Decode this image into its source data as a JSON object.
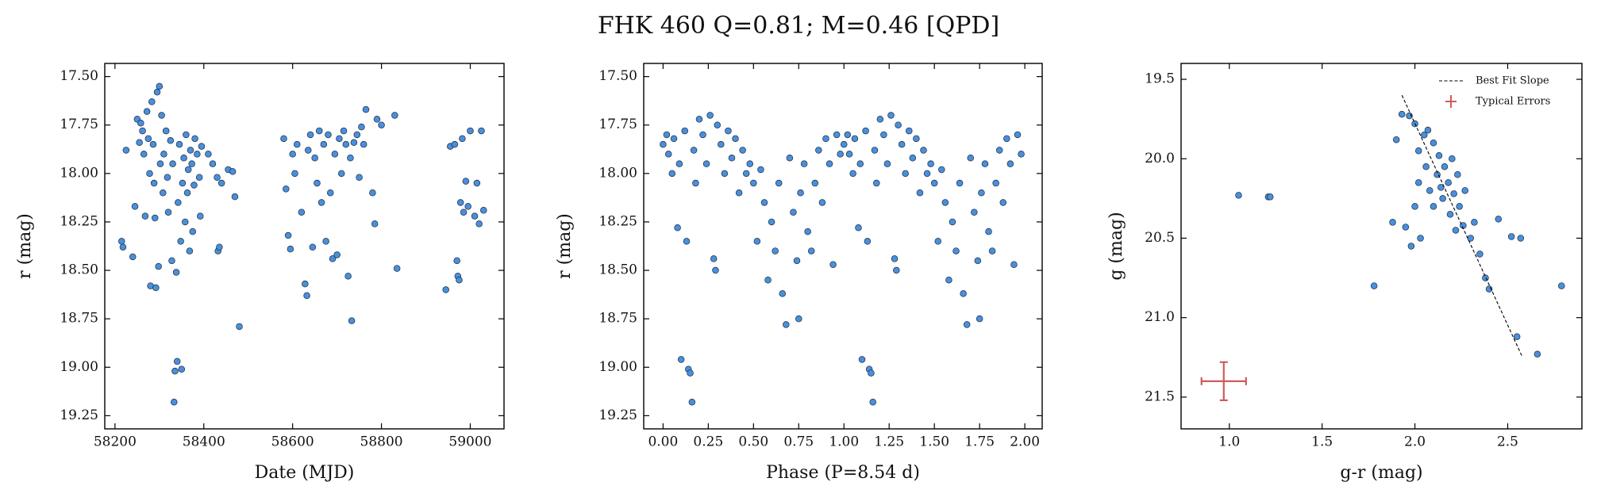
{
  "title": "FHK 460  Q=0.81; M=0.46 [QPD]",
  "chart_data": [
    {
      "type": "scatter",
      "xlabel": "Date (MJD)",
      "ylabel": "r (mag)",
      "xlim": [
        58177,
        59076
      ],
      "ylim": [
        19.318,
        17.432
      ],
      "xticks": [
        58200,
        58400,
        58600,
        58800,
        59000
      ],
      "yticks": [
        {
          "value": 17.5,
          "label": "17.50"
        },
        {
          "value": 17.75,
          "label": "17.75"
        },
        {
          "value": 18.0,
          "label": "18.00"
        },
        {
          "value": 18.25,
          "label": "18.25"
        },
        {
          "value": 18.5,
          "label": "18.50"
        },
        {
          "value": 18.75,
          "label": "18.75"
        },
        {
          "value": 19.0,
          "label": "19.00"
        },
        {
          "value": 19.25,
          "label": "19.25"
        }
      ],
      "series": [
        {
          "color": "#4a8fdc",
          "x": [
            58215,
            58218,
            58225,
            58240,
            58245,
            58250,
            58255,
            58258,
            58262,
            58265,
            58268,
            58272,
            58275,
            58278,
            58280,
            58283,
            58286,
            58288,
            58290,
            58292,
            58295,
            58298,
            58300,
            58302,
            58305,
            58308,
            58310,
            58315,
            58318,
            58320,
            58325,
            58328,
            58330,
            58333,
            58335,
            58338,
            58340,
            58342,
            58345,
            58348,
            58350,
            58352,
            58355,
            58358,
            58360,
            58363,
            58365,
            58368,
            58370,
            58373,
            58375,
            58378,
            58380,
            58385,
            58390,
            58392,
            58395,
            58410,
            58420,
            58430,
            58432,
            58435,
            58440,
            58455,
            58465,
            58470,
            58480,
            58580,
            58585,
            58590,
            58595,
            58600,
            58605,
            58610,
            58620,
            58628,
            58632,
            58635,
            58640,
            58645,
            58650,
            58655,
            58660,
            58665,
            58670,
            58675,
            58680,
            58685,
            58690,
            58695,
            58700,
            58705,
            58710,
            58715,
            58720,
            58725,
            58730,
            58733,
            58738,
            58745,
            58750,
            58755,
            58760,
            58765,
            58780,
            58785,
            58790,
            58800,
            58830,
            58835,
            58945,
            58955,
            58965,
            58970,
            58972,
            58975,
            58978,
            58982,
            58985,
            58990,
            58995,
            59000,
            59010,
            59015,
            59020,
            59025,
            59030
          ],
          "y": [
            18.35,
            18.38,
            17.88,
            18.43,
            18.17,
            17.72,
            17.84,
            17.74,
            17.78,
            17.9,
            18.22,
            17.68,
            17.82,
            18.0,
            18.58,
            17.63,
            17.85,
            18.05,
            18.23,
            18.59,
            17.58,
            18.48,
            17.55,
            17.95,
            17.7,
            18.1,
            17.9,
            17.78,
            18.02,
            18.2,
            17.83,
            18.45,
            17.95,
            19.18,
            19.02,
            18.51,
            18.97,
            18.15,
            17.85,
            18.35,
            19.01,
            18.05,
            17.92,
            18.25,
            17.8,
            18.1,
            17.98,
            18.4,
            17.88,
            17.95,
            18.3,
            18.06,
            17.82,
            17.9,
            18.02,
            18.22,
            17.86,
            17.9,
            17.95,
            18.02,
            18.4,
            18.38,
            18.05,
            17.98,
            17.99,
            18.12,
            18.79,
            17.82,
            18.08,
            18.32,
            18.39,
            17.9,
            18.0,
            17.85,
            18.2,
            18.57,
            18.63,
            17.88,
            17.8,
            18.38,
            17.92,
            18.05,
            17.78,
            18.15,
            17.85,
            18.35,
            17.8,
            18.1,
            18.44,
            17.9,
            18.42,
            17.82,
            18.0,
            17.78,
            17.85,
            18.53,
            17.92,
            18.76,
            17.84,
            17.8,
            18.02,
            17.76,
            17.85,
            17.67,
            18.1,
            18.26,
            17.72,
            17.75,
            17.7,
            18.49,
            18.6,
            17.86,
            17.85,
            18.45,
            18.53,
            18.55,
            18.15,
            17.82,
            18.2,
            18.04,
            18.17,
            17.78,
            18.22,
            18.05,
            18.26,
            17.78,
            18.19
          ]
        }
      ]
    },
    {
      "type": "scatter",
      "xlabel": "Phase (P=8.54 d)",
      "ylabel": "r (mag)",
      "xlim": [
        -0.107,
        2.096
      ],
      "ylim": [
        19.318,
        17.432
      ],
      "xticks": [
        {
          "value": 0,
          "label": "0.00"
        },
        {
          "value": 0.25,
          "label": "0.25"
        },
        {
          "value": 0.5,
          "label": "0.50"
        },
        {
          "value": 0.75,
          "label": "0.75"
        },
        {
          "value": 1,
          "label": "1.00"
        },
        {
          "value": 1.25,
          "label": "1.25"
        },
        {
          "value": 1.5,
          "label": "1.50"
        },
        {
          "value": 1.75,
          "label": "1.75"
        },
        {
          "value": 2,
          "label": "2.00"
        }
      ],
      "yticks": [
        {
          "value": 17.5,
          "label": "17.50"
        },
        {
          "value": 17.75,
          "label": "17.75"
        },
        {
          "value": 18.0,
          "label": "18.00"
        },
        {
          "value": 18.25,
          "label": "18.25"
        },
        {
          "value": 18.5,
          "label": "18.50"
        },
        {
          "value": 18.75,
          "label": "18.75"
        },
        {
          "value": 19.0,
          "label": "19.00"
        },
        {
          "value": 19.25,
          "label": "19.25"
        }
      ],
      "series": [
        {
          "color": "#4a8fdc",
          "x": [
            0.0,
            0.02,
            0.03,
            0.05,
            0.06,
            0.08,
            0.09,
            0.1,
            0.12,
            0.13,
            0.14,
            0.15,
            0.16,
            0.17,
            0.18,
            0.2,
            0.22,
            0.24,
            0.26,
            0.28,
            0.29,
            0.3,
            0.32,
            0.34,
            0.36,
            0.38,
            0.4,
            0.42,
            0.44,
            0.46,
            0.48,
            0.5,
            0.52,
            0.54,
            0.56,
            0.58,
            0.6,
            0.62,
            0.64,
            0.66,
            0.68,
            0.7,
            0.72,
            0.74,
            0.75,
            0.76,
            0.78,
            0.8,
            0.82,
            0.84,
            0.86,
            0.88,
            0.9,
            0.92,
            0.94,
            0.96,
            0.98,
            1.0,
            1.02,
            1.03,
            1.05,
            1.06,
            1.08,
            1.09,
            1.1,
            1.12,
            1.13,
            1.14,
            1.15,
            1.16,
            1.17,
            1.18,
            1.2,
            1.22,
            1.24,
            1.26,
            1.28,
            1.29,
            1.3,
            1.32,
            1.34,
            1.36,
            1.38,
            1.4,
            1.42,
            1.44,
            1.46,
            1.48,
            1.5,
            1.52,
            1.54,
            1.56,
            1.58,
            1.6,
            1.62,
            1.64,
            1.66,
            1.68,
            1.7,
            1.72,
            1.74,
            1.75,
            1.76,
            1.78,
            1.8,
            1.82,
            1.84,
            1.86,
            1.88,
            1.9,
            1.92,
            1.94,
            1.96,
            1.98
          ],
          "y": [
            17.85,
            17.8,
            17.9,
            18.0,
            17.82,
            18.28,
            17.95,
            18.96,
            17.78,
            18.35,
            19.01,
            19.03,
            19.18,
            17.88,
            18.05,
            17.72,
            17.8,
            17.95,
            17.7,
            18.44,
            18.5,
            17.75,
            17.85,
            18.0,
            17.78,
            17.92,
            17.82,
            18.1,
            17.88,
            18.0,
            17.95,
            18.05,
            18.35,
            17.98,
            18.15,
            18.55,
            18.25,
            18.4,
            18.05,
            18.62,
            18.78,
            17.92,
            18.2,
            18.45,
            18.75,
            18.1,
            17.95,
            18.3,
            18.4,
            18.05,
            17.88,
            18.15,
            17.82,
            17.95,
            18.47,
            17.8,
            17.9,
            17.85,
            17.8,
            17.9,
            18.0,
            17.82,
            18.28,
            17.95,
            18.96,
            17.78,
            18.35,
            19.01,
            19.03,
            19.18,
            17.88,
            18.05,
            17.72,
            17.8,
            17.95,
            17.7,
            18.44,
            18.5,
            17.75,
            17.85,
            18.0,
            17.78,
            17.92,
            17.82,
            18.1,
            17.88,
            18.0,
            17.95,
            18.05,
            18.35,
            17.98,
            18.15,
            18.55,
            18.25,
            18.4,
            18.05,
            18.62,
            18.78,
            17.92,
            18.2,
            18.45,
            18.75,
            18.1,
            17.95,
            18.3,
            18.4,
            18.05,
            17.88,
            18.15,
            17.82,
            17.95,
            18.47,
            17.8,
            17.9
          ]
        }
      ]
    },
    {
      "type": "scatter",
      "xlabel": "g-r (mag)",
      "ylabel": "g (mag)",
      "xlim": [
        0.74,
        2.9
      ],
      "ylim": [
        21.7,
        19.4
      ],
      "xticks": [
        {
          "value": 1,
          "label": "1.0"
        },
        {
          "value": 1.5,
          "label": "1.5"
        },
        {
          "value": 2,
          "label": "2.0"
        },
        {
          "value": 2.5,
          "label": "2.5"
        }
      ],
      "yticks": [
        19.5,
        {
          "value": 20,
          "label": "20.0"
        },
        20.5,
        {
          "value": 21,
          "label": "21.0"
        },
        21.5
      ],
      "series": [
        {
          "color": "#4a8fdc",
          "x": [
            1.05,
            1.21,
            1.22,
            1.78,
            1.9,
            1.93,
            1.95,
            1.97,
            1.98,
            2.0,
            2.02,
            2.03,
            2.05,
            2.06,
            2.08,
            2.1,
            2.1,
            2.12,
            2.13,
            2.15,
            2.16,
            2.18,
            2.19,
            2.2,
            2.21,
            2.23,
            2.24,
            2.26,
            2.27,
            2.3,
            2.32,
            2.35,
            2.38,
            2.4,
            2.45,
            2.52,
            2.55,
            2.57,
            2.66,
            2.79,
            1.88,
            2.0,
            2.07,
            2.14,
            2.22,
            2.02
          ],
          "y": [
            20.23,
            20.24,
            20.24,
            20.8,
            19.88,
            19.72,
            20.43,
            19.73,
            20.55,
            19.78,
            19.95,
            20.5,
            19.85,
            20.05,
            20.2,
            19.9,
            20.3,
            20.1,
            19.98,
            20.25,
            20.05,
            20.15,
            20.35,
            20.0,
            20.22,
            20.1,
            20.3,
            20.42,
            20.2,
            20.5,
            20.4,
            20.6,
            20.75,
            20.82,
            20.38,
            20.49,
            21.12,
            20.5,
            21.23,
            20.8,
            20.4,
            20.3,
            19.82,
            20.18,
            20.45,
            20.15
          ]
        }
      ],
      "lines": [
        {
          "name": "Best Fit Slope",
          "color": "#000000",
          "x": [
            1.93,
            2.58
          ],
          "y": [
            19.6,
            21.25
          ]
        }
      ],
      "errorbars": [
        {
          "name": "Typical Errors",
          "color": "#cd5c5c",
          "x": 0.97,
          "y": 21.4,
          "xerr": 0.12,
          "yerr": 0.12
        }
      ],
      "legend": "upper right"
    }
  ]
}
